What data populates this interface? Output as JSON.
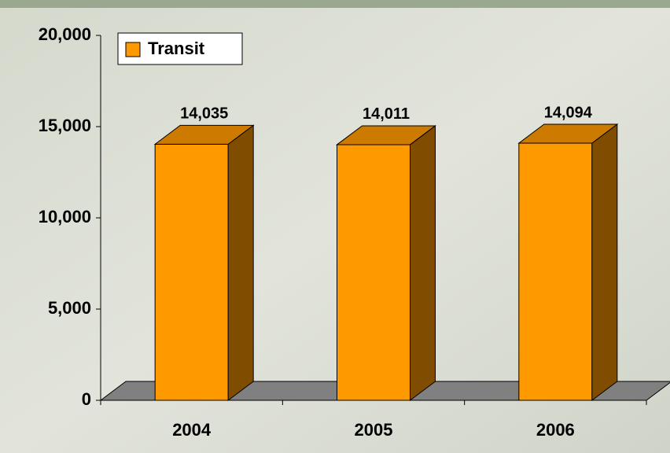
{
  "chart_data": {
    "type": "bar3d",
    "categories": [
      "2004",
      "2005",
      "2006"
    ],
    "series": [
      {
        "name": "Transit",
        "color": "#ff9900",
        "values": [
          14035,
          14011,
          14094
        ],
        "value_labels": [
          "14,035",
          "14,011",
          "14,094"
        ]
      }
    ],
    "ylim": [
      0,
      20000
    ],
    "yticks": [
      0,
      {
        "value": 5000,
        "label": "5,000"
      },
      {
        "value": 10000,
        "label": "10,000"
      },
      {
        "value": 15000,
        "label": "15,000"
      },
      {
        "value": 20000,
        "label": "20,000"
      }
    ],
    "legend": "top-left"
  }
}
